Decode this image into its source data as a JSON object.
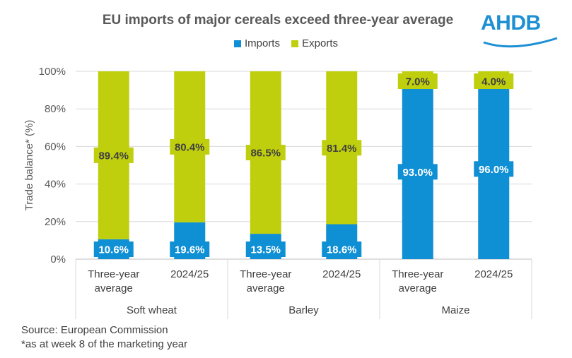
{
  "chart_data": {
    "type": "bar",
    "stacked": true,
    "title": "EU imports of major cereals exceed three-year average",
    "ylabel": "Trade balance* (%)",
    "ylim": [
      0,
      100
    ],
    "yticks": [
      "0%",
      "20%",
      "40%",
      "60%",
      "80%",
      "100%"
    ],
    "groups": [
      {
        "name": "Soft wheat",
        "categories": [
          [
            "Three-year",
            "average"
          ],
          [
            "2024/25"
          ]
        ]
      },
      {
        "name": "Barley",
        "categories": [
          [
            "Three-year",
            "average"
          ],
          [
            "2024/25"
          ]
        ]
      },
      {
        "name": "Maize",
        "categories": [
          [
            "Three-year",
            "average"
          ],
          [
            "2024/25"
          ]
        ]
      }
    ],
    "series": [
      {
        "name": "Imports",
        "color": "#0f8fd4",
        "values": [
          10.6,
          19.6,
          13.5,
          18.6,
          93.0,
          96.0
        ],
        "labels": [
          "10.6%",
          "19.6%",
          "13.5%",
          "18.6%",
          "93.0%",
          "96.0%"
        ]
      },
      {
        "name": "Exports",
        "color": "#bfcf0e",
        "values": [
          89.4,
          80.4,
          86.5,
          81.4,
          7.0,
          4.0
        ],
        "labels": [
          "89.4%",
          "80.4%",
          "86.5%",
          "81.4%",
          "7.0%",
          "4.0%"
        ]
      }
    ],
    "legend_position": "top"
  },
  "logo": {
    "text": "AHDB"
  },
  "source": {
    "line1": "Source: European Commission",
    "line2": "*as at week 8 of the marketing year"
  }
}
